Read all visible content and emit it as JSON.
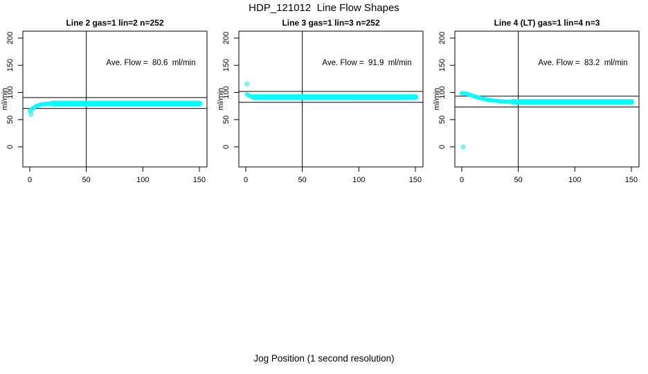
{
  "title": "HDP_121012  Line Flow Shapes",
  "xlabel": "Jog Position (1 second resolution)",
  "colors": {
    "points": "#00FFFF",
    "axis": "#000000",
    "background": "#FFFFFF"
  },
  "chart_data": {
    "type": "scatter",
    "title": "HDP_121012  Line Flow Shapes",
    "xlabel": "Jog Position (1 second resolution)",
    "x_ticks": [
      0,
      50,
      100,
      150
    ],
    "y_ticks": [
      0,
      50,
      100,
      150,
      200
    ],
    "xlim": [
      0,
      155
    ],
    "ylim": [
      0,
      200
    ],
    "grid": false,
    "vline_x": 50,
    "panels": [
      {
        "title": "Line 2 gas=1 lin=2 n=252",
        "ylabel": "ml/min",
        "ave_flow": 80.6,
        "annotation": "Ave. Flow =  80.6  ml/min",
        "hlines": [
          90.6,
          70.6
        ],
        "outliers": [
          [
            1,
            59.5
          ]
        ],
        "ramp": [
          [
            0,
            66
          ],
          [
            1,
            68
          ],
          [
            2,
            70
          ],
          [
            3,
            71.5
          ],
          [
            4,
            73
          ],
          [
            5,
            74.2
          ],
          [
            6,
            75.2
          ],
          [
            7,
            76
          ],
          [
            8,
            76.7
          ],
          [
            9,
            77.3
          ],
          [
            10,
            77.8
          ],
          [
            11,
            78.2
          ],
          [
            12,
            78.5
          ],
          [
            13,
            78.8
          ],
          [
            14,
            79
          ],
          [
            15,
            79.2
          ],
          [
            16,
            79.4
          ],
          [
            17,
            79.5
          ],
          [
            18,
            79.6
          ],
          [
            19,
            79.7
          ],
          [
            20,
            79.8
          ]
        ],
        "band": {
          "x_start": 20,
          "x_end": 150,
          "y_center": 79.5,
          "y_spread": 2.5
        }
      },
      {
        "title": "Line 3 gas=1 lin=3 n=252",
        "ylabel": "ml/min",
        "ave_flow": 91.9,
        "annotation": "Ave. Flow =  91.9  ml/min",
        "hlines": [
          101.9,
          81.9
        ],
        "outliers": [
          [
            1,
            116
          ]
        ],
        "ramp": [
          [
            1,
            96.5
          ],
          [
            2,
            95.5
          ],
          [
            3,
            94.3
          ],
          [
            4,
            93.2
          ],
          [
            5,
            92.3
          ],
          [
            6,
            91.8
          ],
          [
            7,
            91.5
          ]
        ],
        "band": {
          "x_start": 7,
          "x_end": 150,
          "y_center": 91.3,
          "y_spread": 2.3
        }
      },
      {
        "title": "Line 4 (LT) gas=1 lin=4 n=3",
        "ylabel": "ml/min",
        "ave_flow": 83.2,
        "annotation": "Ave. Flow =  83.2  ml/min",
        "hlines": [
          93.2,
          73.2
        ],
        "outliers": [
          [
            1,
            0
          ]
        ],
        "ramp": [
          [
            0,
            98.5
          ],
          [
            1,
            98.4
          ],
          [
            2,
            98.2
          ],
          [
            3,
            97.9
          ],
          [
            4,
            97.5
          ],
          [
            5,
            97
          ],
          [
            6,
            96.4
          ],
          [
            7,
            95.8
          ],
          [
            8,
            95.1
          ],
          [
            9,
            94.4
          ],
          [
            10,
            93.7
          ],
          [
            11,
            93
          ],
          [
            12,
            92.3
          ],
          [
            13,
            91.7
          ],
          [
            14,
            91.1
          ],
          [
            15,
            90.5
          ],
          [
            16,
            89.9
          ],
          [
            17,
            89.4
          ],
          [
            18,
            88.9
          ],
          [
            19,
            88.4
          ],
          [
            20,
            87.9
          ],
          [
            21,
            87.5
          ],
          [
            22,
            87.1
          ],
          [
            23,
            86.7
          ],
          [
            24,
            86.3
          ],
          [
            25,
            86
          ],
          [
            26,
            85.7
          ],
          [
            27,
            85.4
          ],
          [
            28,
            85.1
          ],
          [
            29,
            84.8
          ],
          [
            30,
            84.6
          ],
          [
            31,
            84.4
          ],
          [
            32,
            84.2
          ],
          [
            33,
            84
          ],
          [
            34,
            83.8
          ],
          [
            35,
            83.7
          ],
          [
            36,
            83.5
          ],
          [
            37,
            83.4
          ],
          [
            38,
            83.3
          ],
          [
            39,
            83.2
          ],
          [
            40,
            83.1
          ],
          [
            42,
            83
          ],
          [
            44,
            82.9
          ],
          [
            46,
            82.9
          ],
          [
            48,
            82.8
          ]
        ],
        "band": {
          "x_start": 45,
          "x_end": 150,
          "y_center": 82.8,
          "y_spread": 2.0
        }
      }
    ]
  }
}
